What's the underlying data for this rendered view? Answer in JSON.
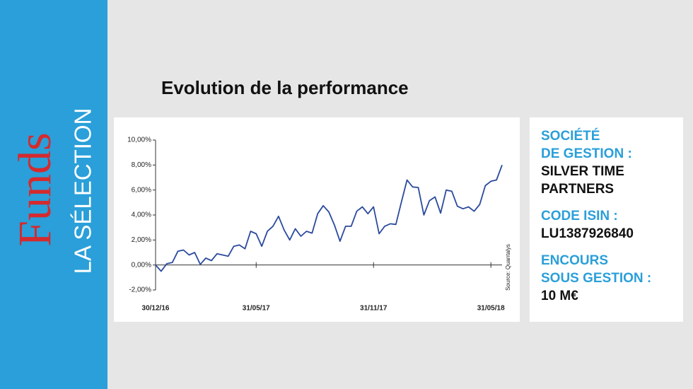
{
  "sidebar": {
    "brand": "Funds",
    "subtitle": "LA SÉLECTION"
  },
  "chart_data": {
    "type": "line",
    "title": "Evolution de la performance",
    "source": "Source: Quantalys",
    "categories": [
      "30/12/16",
      null,
      null,
      null,
      null,
      null,
      null,
      null,
      null,
      null,
      null,
      null,
      null,
      null,
      null,
      null,
      null,
      null,
      "31/05/17",
      null,
      null,
      null,
      null,
      null,
      null,
      null,
      null,
      null,
      null,
      null,
      null,
      null,
      null,
      null,
      null,
      null,
      null,
      null,
      null,
      "31/11/17",
      null,
      null,
      null,
      null,
      null,
      null,
      null,
      null,
      null,
      null,
      null,
      null,
      null,
      null,
      null,
      null,
      null,
      null,
      null,
      null,
      "31/05/18",
      null,
      null
    ],
    "series": [
      {
        "color": "#2b4a9e",
        "values": [
          0,
          -0.5,
          0.1,
          0.2,
          1.1,
          1.2,
          0.8,
          1.0,
          0.05,
          0.55,
          0.35,
          0.9,
          0.8,
          0.7,
          1.5,
          1.6,
          1.3,
          2.7,
          2.5,
          1.5,
          2.7,
          3.1,
          3.9,
          2.8,
          2.0,
          2.9,
          2.3,
          2.7,
          2.55,
          4.1,
          4.75,
          4.25,
          3.2,
          1.9,
          3.1,
          3.1,
          4.3,
          4.65,
          4.1,
          4.65,
          2.5,
          3.1,
          3.3,
          3.25,
          5.05,
          6.8,
          6.25,
          6.2,
          4.0,
          5.15,
          5.45,
          4.15,
          6.0,
          5.9,
          4.7,
          4.5,
          4.65,
          4.3,
          4.85,
          6.35,
          6.7,
          6.8,
          8.0
        ]
      }
    ],
    "ylim": [
      -2,
      10
    ],
    "yticks": [
      {
        "value": -2,
        "label": "-2,00%"
      },
      {
        "value": 0,
        "label": "0,00%"
      },
      {
        "value": 2,
        "label": "2,00%"
      },
      {
        "value": 4,
        "label": "4,00%"
      },
      {
        "value": 6,
        "label": "6,00%"
      },
      {
        "value": 8,
        "label": "8,00%"
      },
      {
        "value": 10,
        "label": "10,00%"
      }
    ]
  },
  "info": {
    "items": [
      {
        "label": [
          "SOCIÉTÉ",
          "DE GESTION :"
        ],
        "value": [
          "SILVER TIME",
          "PARTNERS"
        ]
      },
      {
        "label": [
          "CODE ISIN :"
        ],
        "value": [
          "LU1387926840"
        ]
      },
      {
        "label": [
          "ENCOURS",
          "SOUS GESTION :"
        ],
        "value": [
          "10 M€"
        ]
      }
    ]
  }
}
